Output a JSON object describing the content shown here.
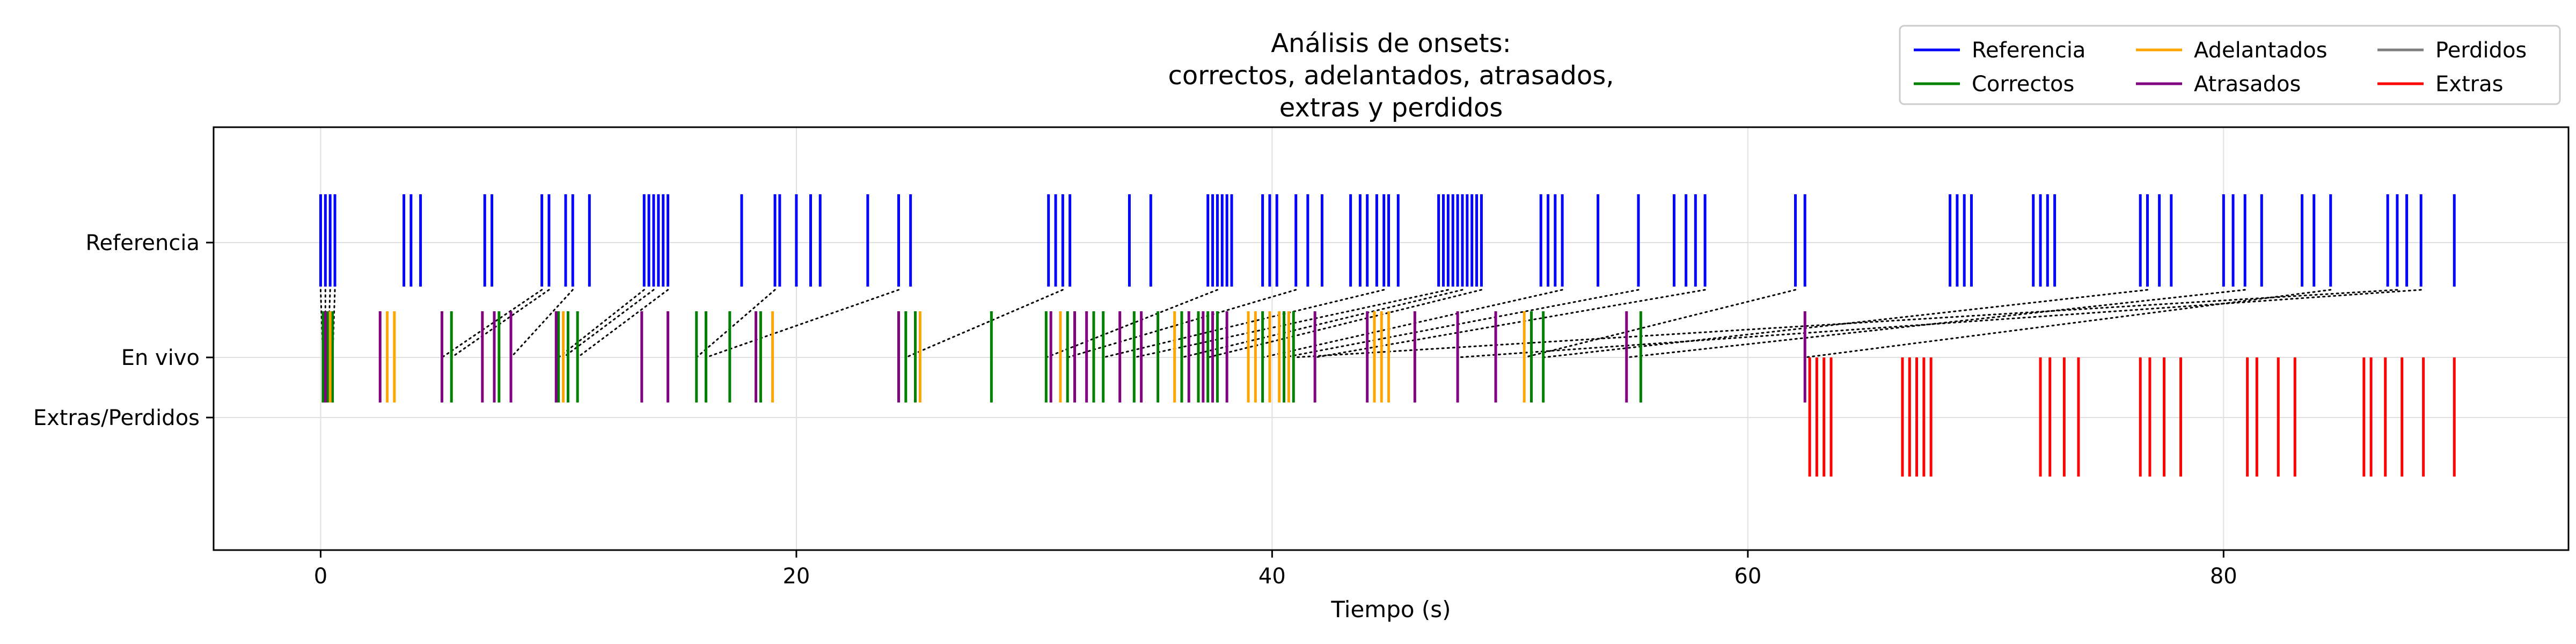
{
  "chart_data": {
    "type": "event-plot",
    "title": [
      "Análisis de onsets:",
      "correctos, adelantados, atrasados,",
      "extras y perdidos"
    ],
    "xlabel": "Tiempo (s)",
    "ylabel": "",
    "xlim": [
      -4.5,
      94.5
    ],
    "x_ticks": [
      0,
      20,
      40,
      60,
      80
    ],
    "x_tick_labels": [
      "0",
      "20",
      "40",
      "60",
      "80"
    ],
    "y_ticks": [
      {
        "label": "Referencia",
        "row": "reference"
      },
      {
        "label": "En vivo",
        "row": "live"
      },
      {
        "label": "Extras/Perdidos",
        "row": "extras"
      }
    ],
    "grid": true,
    "legend": {
      "placement": "top-right",
      "columns": 3,
      "entries": [
        {
          "label": "Referencia",
          "color": "#0000ff"
        },
        {
          "label": "Correctos",
          "color": "#008000"
        },
        {
          "label": "Adelantados",
          "color": "#ffa500"
        },
        {
          "label": "Atrasados",
          "color": "#800080"
        },
        {
          "label": "Perdidos",
          "color": "#808080"
        },
        {
          "label": "Extras",
          "color": "#ff0000"
        }
      ]
    },
    "series": [
      {
        "name": "Referencia",
        "row": "reference",
        "color": "#0000ff",
        "x": [
          0.0,
          0.2,
          0.4,
          0.6,
          3.5,
          3.8,
          4.2,
          6.9,
          7.2,
          9.3,
          9.6,
          10.3,
          10.6,
          11.3,
          13.6,
          13.8,
          14.0,
          14.2,
          14.4,
          14.6,
          17.7,
          19.1,
          19.3,
          20.0,
          20.6,
          21.0,
          23.0,
          24.3,
          24.8,
          30.6,
          30.9,
          31.2,
          31.5,
          34.0,
          34.9,
          37.3,
          37.5,
          37.7,
          37.9,
          38.1,
          38.3,
          39.6,
          39.9,
          40.2,
          41.0,
          41.5,
          42.1,
          43.3,
          43.7,
          44.0,
          44.4,
          44.7,
          44.9,
          45.3,
          47.0,
          47.2,
          47.4,
          47.6,
          47.8,
          48.0,
          48.2,
          48.4,
          48.6,
          48.8,
          51.3,
          51.6,
          51.9,
          52.2,
          53.7,
          55.4,
          56.9,
          57.4,
          57.8,
          58.2,
          62.0,
          62.4,
          68.5,
          68.8,
          69.1,
          69.4,
          72.0,
          72.3,
          72.6,
          72.9,
          76.5,
          76.8,
          77.3,
          77.8,
          80.0,
          80.4,
          80.9,
          81.6,
          83.3,
          83.8,
          84.5,
          86.9,
          87.3,
          87.7,
          88.3,
          89.7
        ]
      },
      {
        "name": "Correctos",
        "row": "live",
        "color": "#008000",
        "x": [
          0.1,
          0.3,
          0.5,
          5.5,
          7.5,
          10.0,
          10.4,
          10.8,
          15.8,
          16.2,
          17.2,
          18.5,
          24.6,
          25.0,
          28.2,
          30.5,
          31.4,
          32.5,
          32.9,
          34.2,
          35.2,
          36.2,
          36.9,
          37.3,
          37.7,
          39.6,
          40.5,
          40.9,
          50.9,
          51.4,
          55.5
        ]
      },
      {
        "name": "Adelantados",
        "row": "live",
        "color": "#ffa500",
        "x": [
          0.4,
          2.8,
          3.1,
          10.2,
          19.0,
          25.2,
          31.1,
          35.9,
          39.0,
          39.3,
          39.9,
          40.3,
          40.7,
          44.3,
          44.6,
          44.9,
          50.6
        ]
      },
      {
        "name": "Atrasados",
        "row": "live",
        "color": "#800080",
        "x": [
          0.2,
          2.5,
          5.1,
          6.8,
          7.3,
          8.0,
          9.9,
          13.5,
          14.6,
          18.3,
          24.3,
          30.7,
          31.7,
          32.2,
          33.6,
          34.5,
          36.5,
          37.1,
          37.5,
          38.1,
          41.8,
          44.0,
          46.0,
          47.8,
          49.4,
          54.9,
          62.4
        ]
      },
      {
        "name": "Extras",
        "row": "extras",
        "color": "#ff0000",
        "x": [
          62.6,
          62.9,
          63.2,
          63.5,
          66.5,
          66.8,
          67.1,
          67.4,
          67.7,
          72.3,
          72.7,
          73.3,
          73.9,
          76.5,
          76.9,
          77.5,
          78.2,
          81.0,
          81.4,
          82.3,
          83.0,
          85.9,
          86.2,
          86.8,
          87.5,
          88.4,
          89.7
        ]
      },
      {
        "name": "Perdidos",
        "row": "extras",
        "color": "#808080",
        "x": []
      }
    ],
    "matches": [
      [
        0.0,
        0.1
      ],
      [
        0.2,
        0.2
      ],
      [
        0.4,
        0.3
      ],
      [
        0.6,
        0.5
      ],
      [
        9.3,
        5.1
      ],
      [
        9.6,
        5.5
      ],
      [
        10.6,
        8.0
      ],
      [
        13.6,
        10.0
      ],
      [
        14.0,
        10.2
      ],
      [
        14.6,
        10.8
      ],
      [
        19.1,
        15.8
      ],
      [
        24.3,
        16.2
      ],
      [
        31.2,
        24.6
      ],
      [
        37.7,
        30.5
      ],
      [
        41.0,
        31.4
      ],
      [
        44.7,
        32.9
      ],
      [
        47.4,
        34.2
      ],
      [
        48.0,
        36.2
      ],
      [
        48.8,
        37.3
      ],
      [
        52.2,
        39.6
      ],
      [
        55.4,
        40.5
      ],
      [
        58.2,
        41.8
      ],
      [
        62.0,
        50.6
      ],
      [
        76.8,
        51.4
      ],
      [
        80.9,
        54.9
      ],
      [
        84.5,
        62.4
      ],
      [
        87.3,
        40.9
      ],
      [
        88.3,
        47.8
      ]
    ]
  }
}
